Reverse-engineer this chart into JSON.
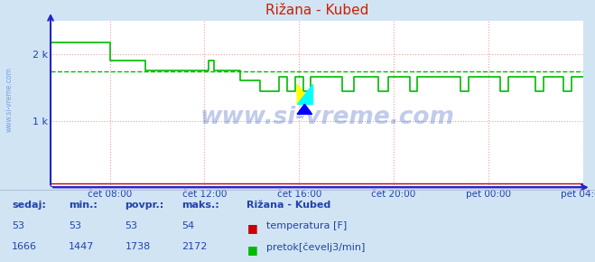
{
  "title": "Rižana - Kubed",
  "bg_color": "#d0e4f4",
  "plot_bg_color": "#ffffff",
  "grid_color": "#e8a0a0",
  "axis_color": "#2222cc",
  "text_color": "#2244aa",
  "title_color": "#cc2200",
  "temp_color": "#cc0000",
  "flow_color": "#00bb00",
  "avg_color": "#00bb00",
  "x_tick_labels": [
    "čet 08:00",
    "čet 12:00",
    "čet 16:00",
    "čet 20:00",
    "pet 00:00",
    "pet 04:00"
  ],
  "ylim": [
    0,
    2500
  ],
  "y_ticks": [
    1000,
    2000
  ],
  "y_tick_labels": [
    "1 k",
    "2 k"
  ],
  "avg_line": 1738,
  "watermark": "www.si-vreme.com",
  "left_text": "www.si-vreme.com",
  "footer_headers": [
    "sedaj:",
    "min.:",
    "povpr.:",
    "maks.:"
  ],
  "footer_station": "Rižana - Kubed",
  "footer_temp_vals": [
    "53",
    "53",
    "53",
    "54"
  ],
  "footer_flow_vals": [
    "1666",
    "1447",
    "1738",
    "2172"
  ],
  "footer_temp_label": "temperatura [F]",
  "footer_flow_label": "pretok[čevelj3/min]"
}
